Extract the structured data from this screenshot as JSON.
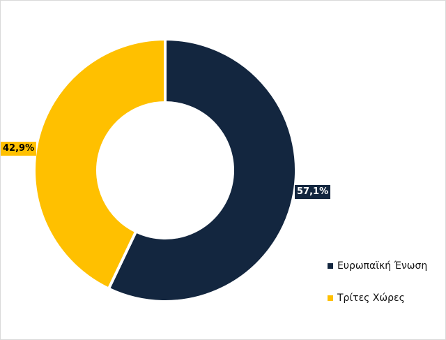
{
  "chart_data": {
    "type": "pie",
    "donut": true,
    "categories": [
      "Ευρωπαϊκή Ένωση",
      "Τρίτες Χώρες"
    ],
    "values": [
      57.1,
      42.9
    ],
    "data_labels": [
      "57,1%",
      "42,9%"
    ],
    "colors": [
      "#13263f",
      "#ffc000"
    ],
    "legend_position": "right-bottom",
    "title": ""
  }
}
